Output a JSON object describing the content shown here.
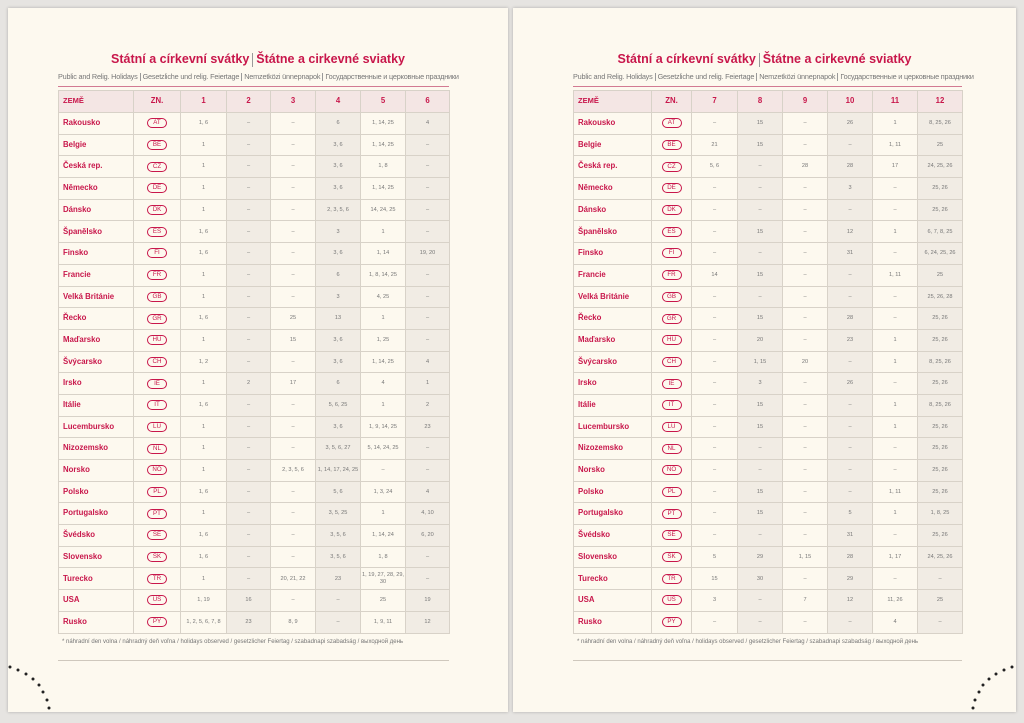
{
  "pages": [
    {
      "title": [
        "Státní a církevní svátky",
        "Štátne a cirkevné sviatky"
      ],
      "subtitle": [
        "Public and Relig. Holidays",
        "Gesetzliche und relig. Feiertage",
        "Nemzetközi ünnepnapok",
        "Государственные и церковные праздники"
      ],
      "header": [
        "ZEMĚ",
        "ZN.",
        "1",
        "2",
        "3",
        "4",
        "5",
        "6"
      ],
      "rows": [
        [
          "Rakousko",
          "AT",
          "1, 6",
          "–",
          "–",
          "6",
          "1, 14, 25",
          "4"
        ],
        [
          "Belgie",
          "BE",
          "1",
          "–",
          "–",
          "3, 6",
          "1, 14, 25",
          "–"
        ],
        [
          "Česká rep.",
          "CZ",
          "1",
          "–",
          "–",
          "3, 6",
          "1, 8",
          "–"
        ],
        [
          "Německo",
          "DE",
          "1",
          "–",
          "–",
          "3, 6",
          "1, 14, 25",
          "–"
        ],
        [
          "Dánsko",
          "DK",
          "1",
          "–",
          "–",
          "2, 3, 5, 6",
          "14, 24, 25",
          "–"
        ],
        [
          "Španělsko",
          "ES",
          "1, 6",
          "–",
          "–",
          "3",
          "1",
          "–"
        ],
        [
          "Finsko",
          "FI",
          "1, 6",
          "–",
          "–",
          "3, 6",
          "1, 14",
          "19, 20"
        ],
        [
          "Francie",
          "FR",
          "1",
          "–",
          "–",
          "6",
          "1, 8, 14, 25",
          "–"
        ],
        [
          "Velká Británie",
          "GB",
          "1",
          "–",
          "–",
          "3",
          "4, 25",
          "–"
        ],
        [
          "Řecko",
          "GR",
          "1, 6",
          "–",
          "25",
          "13",
          "1",
          "–"
        ],
        [
          "Maďarsko",
          "HU",
          "1",
          "–",
          "15",
          "3, 6",
          "1, 25",
          "–"
        ],
        [
          "Švýcarsko",
          "CH",
          "1, 2",
          "–",
          "–",
          "3, 6",
          "1, 14, 25",
          "4"
        ],
        [
          "Irsko",
          "IE",
          "1",
          "2",
          "17",
          "6",
          "4",
          "1"
        ],
        [
          "Itálie",
          "IT",
          "1, 6",
          "–",
          "–",
          "5, 6, 25",
          "1",
          "2"
        ],
        [
          "Lucembursko",
          "LU",
          "1",
          "–",
          "–",
          "3, 6",
          "1, 9, 14, 25",
          "23"
        ],
        [
          "Nizozemsko",
          "NL",
          "1",
          "–",
          "–",
          "3, 5, 6, 27",
          "5, 14, 24, 25",
          "–"
        ],
        [
          "Norsko",
          "NO",
          "1",
          "–",
          "2, 3, 5, 6",
          "1, 14, 17, 24, 25",
          "–",
          "–"
        ],
        [
          "Polsko",
          "PL",
          "1, 6",
          "–",
          "–",
          "5, 6",
          "1, 3, 24",
          "4"
        ],
        [
          "Portugalsko",
          "PT",
          "1",
          "–",
          "–",
          "3, 5, 25",
          "1",
          "4, 10"
        ],
        [
          "Švédsko",
          "SE",
          "1, 6",
          "–",
          "–",
          "3, 5, 6",
          "1, 14, 24",
          "6, 20"
        ],
        [
          "Slovensko",
          "SK",
          "1, 6",
          "–",
          "–",
          "3, 5, 6",
          "1, 8",
          "–"
        ],
        [
          "Turecko",
          "TR",
          "1",
          "–",
          "20, 21, 22",
          "23",
          "1, 19, 27, 28, 29, 30",
          "–"
        ],
        [
          "USA",
          "US",
          "1, 19",
          "16",
          "–",
          "–",
          "25",
          "19"
        ],
        [
          "Rusko",
          "PY",
          "1, 2, 5, 6, 7, 8",
          "23",
          "8, 9",
          "–",
          "1, 9, 11",
          "12"
        ]
      ],
      "footnote": "* náhradní den volna / náhradný deň voľna / holidays observed / gesetzlicher Feiertag / szabadnapi szabadság / выходной день"
    },
    {
      "title": [
        "Státní a církevní svátky",
        "Štátne a cirkevné sviatky"
      ],
      "subtitle": [
        "Public and Relig. Holidays",
        "Gesetzliche und relig. Feiertage",
        "Nemzetközi ünnepnapok",
        "Государственные и церковные праздники"
      ],
      "header": [
        "ZEMĚ",
        "ZN.",
        "7",
        "8",
        "9",
        "10",
        "11",
        "12"
      ],
      "rows": [
        [
          "Rakousko",
          "AT",
          "–",
          "15",
          "–",
          "26",
          "1",
          "8, 25, 26"
        ],
        [
          "Belgie",
          "BE",
          "21",
          "15",
          "–",
          "–",
          "1, 11",
          "25"
        ],
        [
          "Česká rep.",
          "CZ",
          "5, 6",
          "–",
          "28",
          "28",
          "17",
          "24, 25, 26"
        ],
        [
          "Německo",
          "DE",
          "–",
          "–",
          "–",
          "3",
          "–",
          "25, 26"
        ],
        [
          "Dánsko",
          "DK",
          "–",
          "–",
          "–",
          "–",
          "–",
          "25, 26"
        ],
        [
          "Španělsko",
          "ES",
          "–",
          "15",
          "–",
          "12",
          "1",
          "6, 7, 8, 25"
        ],
        [
          "Finsko",
          "FI",
          "–",
          "–",
          "–",
          "31",
          "–",
          "6, 24, 25, 26"
        ],
        [
          "Francie",
          "FR",
          "14",
          "15",
          "–",
          "–",
          "1, 11",
          "25"
        ],
        [
          "Velká Británie",
          "GB",
          "–",
          "–",
          "–",
          "–",
          "–",
          "25, 26, 28"
        ],
        [
          "Řecko",
          "GR",
          "–",
          "15",
          "–",
          "28",
          "–",
          "25, 26"
        ],
        [
          "Maďarsko",
          "HU",
          "–",
          "20",
          "–",
          "23",
          "1",
          "25, 26"
        ],
        [
          "Švýcarsko",
          "CH",
          "–",
          "1, 15",
          "20",
          "–",
          "1",
          "8, 25, 26"
        ],
        [
          "Irsko",
          "IE",
          "–",
          "3",
          "–",
          "26",
          "–",
          "25, 26"
        ],
        [
          "Itálie",
          "IT",
          "–",
          "15",
          "–",
          "–",
          "1",
          "8, 25, 26"
        ],
        [
          "Lucembursko",
          "LU",
          "–",
          "15",
          "–",
          "–",
          "1",
          "25, 26"
        ],
        [
          "Nizozemsko",
          "NL",
          "–",
          "–",
          "–",
          "–",
          "–",
          "25, 26"
        ],
        [
          "Norsko",
          "NO",
          "–",
          "–",
          "–",
          "–",
          "–",
          "25, 26"
        ],
        [
          "Polsko",
          "PL",
          "–",
          "15",
          "–",
          "–",
          "1, 11",
          "25, 26"
        ],
        [
          "Portugalsko",
          "PT",
          "–",
          "15",
          "–",
          "5",
          "1",
          "1, 8, 25"
        ],
        [
          "Švédsko",
          "SE",
          "–",
          "–",
          "–",
          "31",
          "–",
          "25, 26"
        ],
        [
          "Slovensko",
          "SK",
          "5",
          "29",
          "1, 15",
          "28",
          "1, 17",
          "24, 25, 26"
        ],
        [
          "Turecko",
          "TR",
          "15",
          "30",
          "–",
          "29",
          "–",
          "–"
        ],
        [
          "USA",
          "US",
          "3",
          "–",
          "7",
          "12",
          "11, 26",
          "25"
        ],
        [
          "Rusko",
          "PY",
          "–",
          "–",
          "–",
          "–",
          "4",
          "–"
        ]
      ],
      "footnote": "* náhradní den volna / náhradný deň voľna / holidays observed / gesetzlicher Feiertag / szabadnapi szabadság / выходной день"
    }
  ]
}
